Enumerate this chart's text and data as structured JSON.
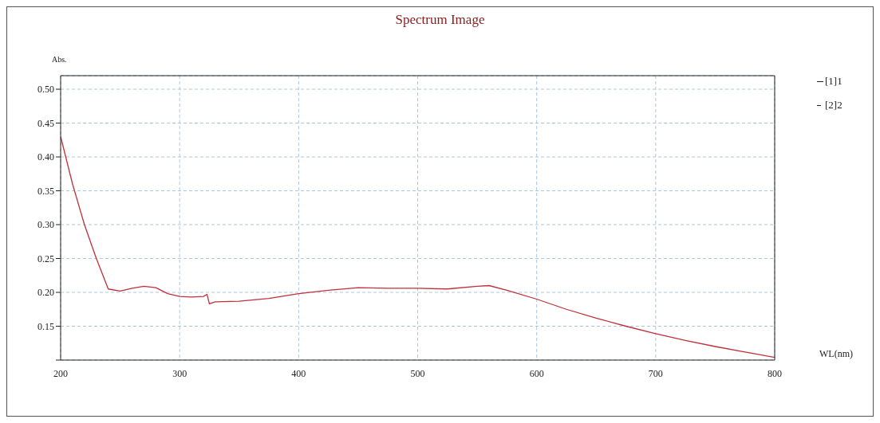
{
  "chart_data": {
    "type": "line",
    "title": "Spectrum Image",
    "xlabel": "WL(nm)",
    "ylabel": "Abs.",
    "x": [
      200,
      210,
      220,
      230,
      240,
      250,
      260,
      270,
      280,
      290,
      300,
      310,
      320,
      323,
      325,
      330,
      350,
      375,
      400,
      425,
      450,
      475,
      500,
      525,
      550,
      560,
      575,
      600,
      625,
      650,
      675,
      700,
      725,
      750,
      775,
      800
    ],
    "series": [
      {
        "name": "[1]1",
        "color": "#c0303a",
        "values": [
          0.43,
          0.36,
          0.3,
          0.25,
          0.205,
          0.202,
          0.206,
          0.209,
          0.207,
          0.198,
          0.194,
          0.193,
          0.194,
          0.197,
          0.183,
          0.186,
          0.187,
          0.191,
          0.198,
          0.203,
          0.207,
          0.206,
          0.206,
          0.205,
          0.209,
          0.21,
          0.203,
          0.19,
          0.175,
          0.162,
          0.15,
          0.139,
          0.129,
          0.12,
          0.112,
          0.104
        ]
      }
    ],
    "annotations": [
      "[2]2"
    ],
    "xlim": [
      200,
      800
    ],
    "xticks": [
      200,
      300,
      400,
      500,
      600,
      700,
      800
    ],
    "ylim": [
      0.1,
      0.52
    ],
    "yticks": [
      {
        "value": 0.1,
        "label": null
      },
      {
        "value": 0.15,
        "label": "0.15"
      },
      {
        "value": 0.2,
        "label": "0.20"
      },
      {
        "value": 0.25,
        "label": "0.25"
      },
      {
        "value": 0.3,
        "label": "0.30"
      },
      {
        "value": 0.35,
        "label": "0.35"
      },
      {
        "value": 0.4,
        "label": "0.40"
      },
      {
        "value": 0.45,
        "label": "0.45"
      },
      {
        "value": 0.5,
        "label": "0.50"
      }
    ],
    "grid": true,
    "legend": "top right",
    "marker": "none",
    "line_style": "solid"
  }
}
